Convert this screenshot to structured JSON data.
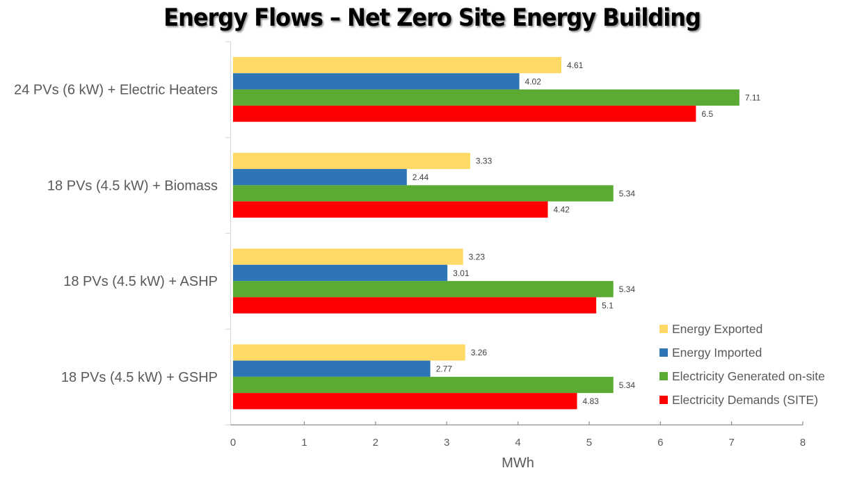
{
  "chart_data": {
    "type": "bar",
    "orientation": "horizontal",
    "title": "Energy Flows – Net Zero Site Energy Building",
    "xlabel": "MWh",
    "ylabel": "",
    "xlim": [
      0,
      8
    ],
    "xticks": [
      0,
      1,
      2,
      3,
      4,
      5,
      6,
      7,
      8
    ],
    "grid": false,
    "legend_position": "bottom-right",
    "categories": [
      "24 PVs (6 kW) + Electric Heaters",
      "18 PVs (4.5 kW) + Biomass",
      "18 PVs (4.5 kW) + ASHP",
      "18 PVs (4.5 kW) + GSHP"
    ],
    "series": [
      {
        "name": "Energy Exported",
        "color": "#FFD966",
        "values": [
          4.61,
          3.33,
          3.23,
          3.26
        ],
        "labels": [
          "4.61",
          "3.33",
          "3.23",
          "3.26"
        ]
      },
      {
        "name": "Energy Imported",
        "color": "#2E75B6",
        "values": [
          4.02,
          2.44,
          3.01,
          2.77
        ],
        "labels": [
          "4.02",
          "2.44",
          "3.01",
          "2.77"
        ]
      },
      {
        "name": "Electricity Generated on-site",
        "color": "#5AAA33",
        "values": [
          7.11,
          5.34,
          5.34,
          5.34
        ],
        "labels": [
          "7.11",
          "5.34",
          "5.34",
          "5.34"
        ]
      },
      {
        "name": "Electricity Demands (SITE)",
        "color": "#FF0000",
        "values": [
          6.5,
          4.42,
          5.1,
          4.83
        ],
        "labels": [
          "6.5",
          "4.42",
          "5.1",
          "4.83"
        ]
      }
    ]
  }
}
